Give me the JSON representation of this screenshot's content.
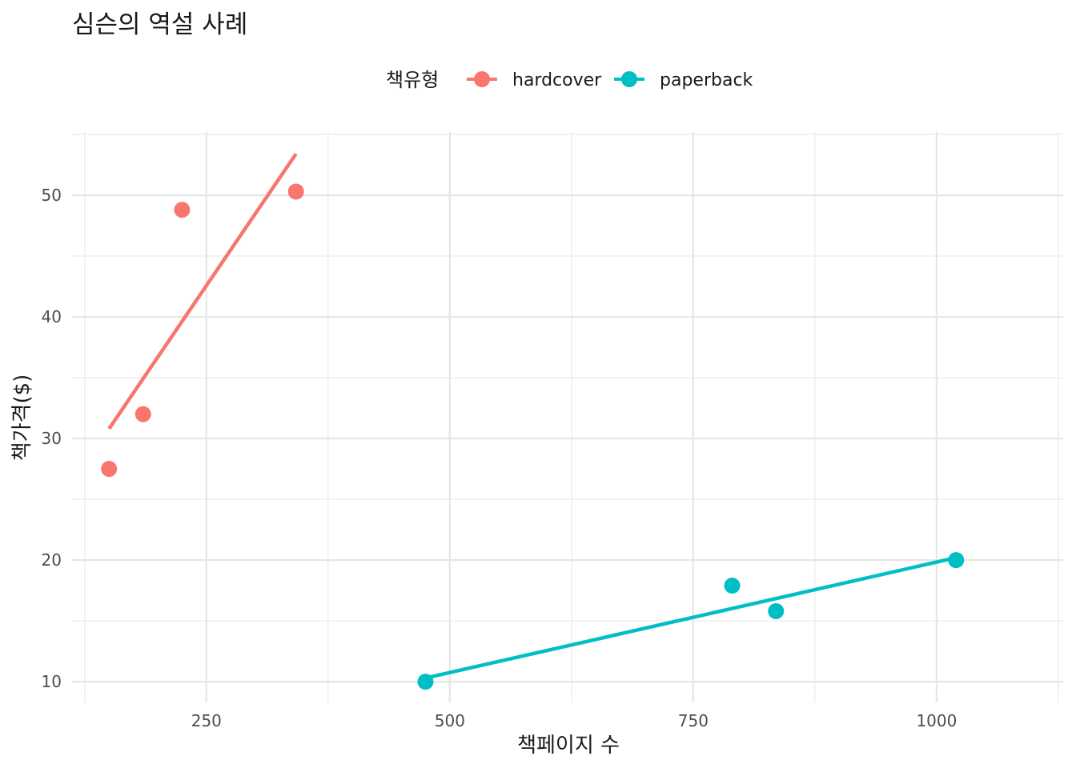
{
  "chart_data": {
    "type": "scatter",
    "title": "심슨의 역설 사례",
    "xlabel": "책페이지 수",
    "ylabel": "책가격($)",
    "legend": {
      "title": "책유형",
      "position": "top"
    },
    "grid": true,
    "xlim": [
      112,
      1130
    ],
    "ylim": [
      8.3,
      55.2
    ],
    "x_ticks": [
      250,
      500,
      750,
      1000
    ],
    "x_tick_labels": [
      "250",
      "500",
      "750",
      "1000"
    ],
    "y_ticks": [
      10,
      20,
      30,
      40,
      50
    ],
    "y_tick_labels": [
      "10",
      "20",
      "30",
      "40",
      "50"
    ],
    "series": [
      {
        "name": "hardcover",
        "color": "#F8766D",
        "points": [
          {
            "x": 150,
            "y": 27.5
          },
          {
            "x": 185,
            "y": 32.0
          },
          {
            "x": 225,
            "y": 48.8
          },
          {
            "x": 342,
            "y": 50.3
          }
        ],
        "trend": {
          "x": [
            150,
            342
          ],
          "y": [
            30.8,
            53.4
          ]
        }
      },
      {
        "name": "paperback",
        "color": "#00BFC4",
        "points": [
          {
            "x": 475,
            "y": 10.0
          },
          {
            "x": 790,
            "y": 17.9
          },
          {
            "x": 835,
            "y": 15.8
          },
          {
            "x": 1020,
            "y": 20.0
          }
        ],
        "trend": {
          "x": [
            475,
            1020
          ],
          "y": [
            10.3,
            20.2
          ]
        }
      }
    ]
  }
}
